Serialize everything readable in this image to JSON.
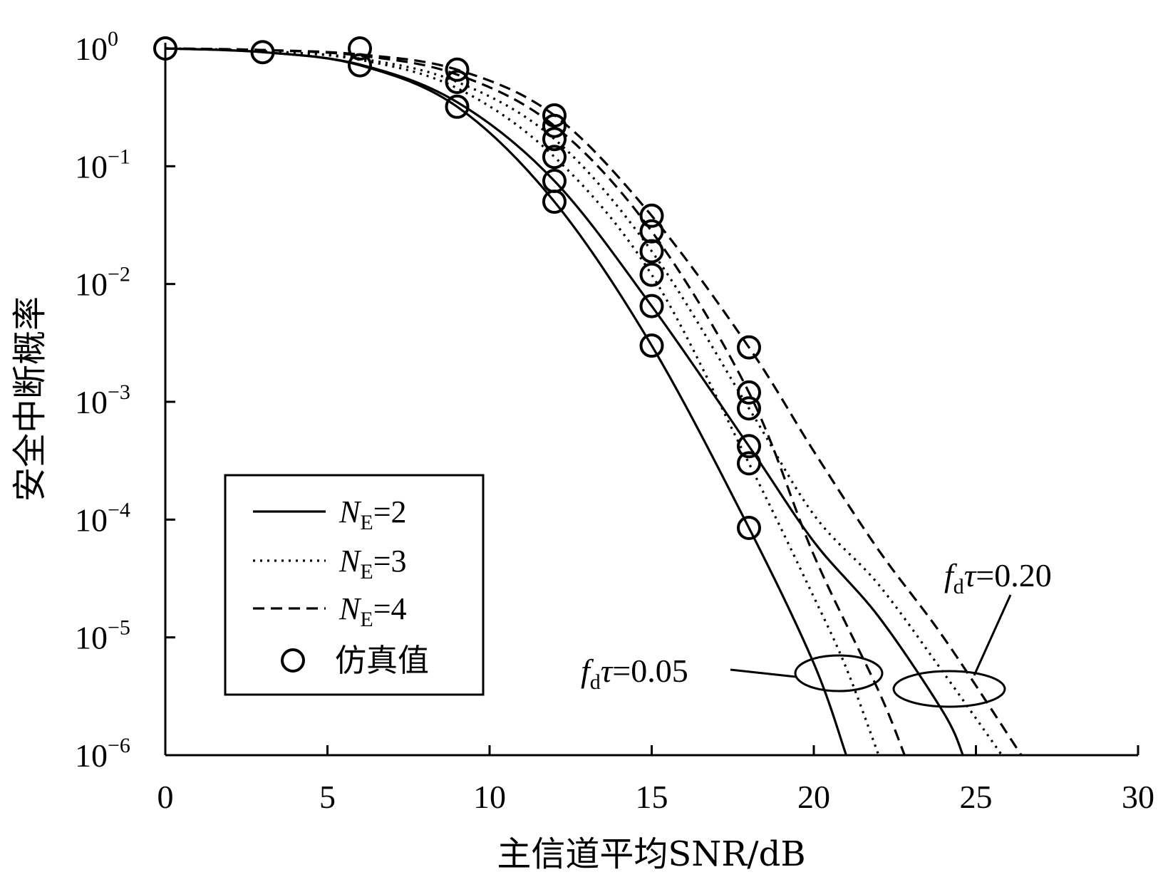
{
  "chart_data": {
    "type": "line",
    "title": "",
    "xlabel": "主信道平均SNR/dB",
    "ylabel": "安全中断概率",
    "xlim": [
      0,
      30
    ],
    "ylim_log10": [
      -6,
      0
    ],
    "y_scale": "log",
    "grid": false,
    "x_ticks": [
      0,
      5,
      10,
      15,
      20,
      25,
      30
    ],
    "x_tick_labels": [
      "0",
      "5",
      "10",
      "15",
      "20",
      "25",
      "30"
    ],
    "y_ticks": [
      {
        "base": "10",
        "exp": "0"
      },
      {
        "base": "10",
        "exp": "−1"
      },
      {
        "base": "10",
        "exp": "−2"
      },
      {
        "base": "10",
        "exp": "−3"
      },
      {
        "base": "10",
        "exp": "−4"
      },
      {
        "base": "10",
        "exp": "−5"
      },
      {
        "base": "10",
        "exp": "−6"
      }
    ],
    "legend": {
      "placement": "lower-left",
      "entries": [
        {
          "label_main": "N",
          "label_sub": "E",
          "label_tail": "=2",
          "style": "solid"
        },
        {
          "label_main": "N",
          "label_sub": "E",
          "label_tail": "=3",
          "style": "dotted"
        },
        {
          "label_main": "N",
          "label_sub": "E",
          "label_tail": "=4",
          "style": "dashed"
        },
        {
          "label": "仿真值",
          "style": "circle-marker"
        }
      ]
    },
    "annotations": [
      {
        "f": "f",
        "sub": "d",
        "tau": "τ",
        "value": "=0.05",
        "ellipse_center": [
          20.8,
          3.6e-06
        ]
      },
      {
        "f": "f",
        "sub": "d",
        "tau": "τ",
        "value": "=0.20",
        "ellipse_center": [
          24.3,
          3.3e-06
        ]
      }
    ],
    "series": [
      {
        "NE": 2,
        "fdtau": 0.05,
        "style": "solid",
        "x": [
          0,
          3,
          6,
          9,
          12,
          15,
          18,
          20,
          21
        ],
        "y": [
          1.0,
          0.93,
          0.72,
          0.32,
          0.05,
          0.003,
          8.5e-05,
          6e-06,
          1e-06
        ]
      },
      {
        "NE": 2,
        "fdtau": 0.2,
        "style": "solid",
        "x": [
          0,
          3,
          6,
          9,
          12,
          15,
          18,
          20,
          22,
          24,
          24.6
        ],
        "y": [
          1.0,
          0.93,
          0.73,
          0.35,
          0.075,
          0.0065,
          0.00042,
          6.5e-05,
          1.5e-05,
          2.3e-06,
          1e-06
        ]
      },
      {
        "NE": 3,
        "fdtau": 0.05,
        "style": "dotted",
        "x": [
          0,
          3,
          6,
          9,
          12,
          15,
          18,
          20,
          21,
          22
        ],
        "y": [
          1.0,
          0.95,
          0.8,
          0.46,
          0.12,
          0.012,
          0.0003,
          2.2e-05,
          5.5e-06,
          1e-06
        ]
      },
      {
        "NE": 3,
        "fdtau": 0.2,
        "style": "dotted",
        "x": [
          0,
          3,
          6,
          9,
          12,
          15,
          18,
          20,
          22,
          24,
          25.8
        ],
        "y": [
          1.0,
          0.95,
          0.82,
          0.52,
          0.17,
          0.019,
          0.00088,
          0.00011,
          2.8e-05,
          5e-06,
          1e-06
        ]
      },
      {
        "NE": 4,
        "fdtau": 0.05,
        "style": "dashed",
        "x": [
          0,
          3,
          6,
          9,
          12,
          15,
          18,
          20,
          22,
          22.8
        ],
        "y": [
          1.0,
          0.97,
          0.87,
          0.6,
          0.22,
          0.028,
          0.0012,
          5e-05,
          3.5e-06,
          1e-06
        ]
      },
      {
        "NE": 4,
        "fdtau": 0.2,
        "style": "dashed",
        "x": [
          0,
          3,
          6,
          9,
          12,
          15,
          18,
          20,
          22,
          24,
          26.4
        ],
        "y": [
          1.0,
          0.97,
          0.89,
          0.66,
          0.27,
          0.038,
          0.0029,
          0.00038,
          5.5e-05,
          1e-05,
          1e-06
        ]
      }
    ],
    "simulation_points": {
      "x": [
        0,
        3,
        6,
        6,
        9,
        9,
        9,
        12,
        12,
        12,
        12,
        12,
        12,
        15,
        15,
        15,
        15,
        15,
        15,
        18,
        18,
        18,
        18,
        18,
        18
      ],
      "y": [
        1.0,
        0.93,
        1.0,
        0.72,
        0.32,
        0.52,
        0.66,
        0.05,
        0.075,
        0.12,
        0.17,
        0.22,
        0.27,
        0.003,
        0.0065,
        0.012,
        0.019,
        0.028,
        0.038,
        8.5e-05,
        0.0003,
        0.00042,
        0.00088,
        0.0012,
        0.0029
      ]
    }
  }
}
